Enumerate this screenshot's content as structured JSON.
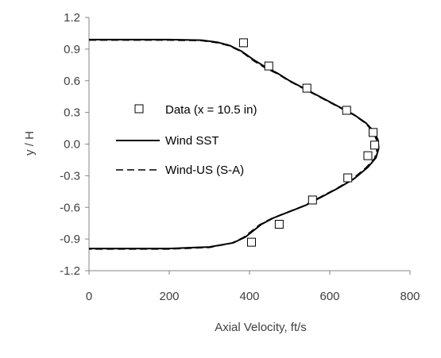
{
  "chart_data": {
    "type": "line",
    "xlabel": "Axial Velocity, ft/s",
    "ylabel": "y / H",
    "xlim": [
      0,
      800
    ],
    "ylim": [
      -1.2,
      1.2
    ],
    "x_ticks": [
      "0",
      "200",
      "400",
      "600",
      "800"
    ],
    "y_ticks": [
      "1.2",
      "0.9",
      "0.6",
      "0.3",
      "0.0",
      "-0.3",
      "-0.6",
      "-0.9",
      "-1.2"
    ],
    "grid": false,
    "legend_position": "center",
    "series": [
      {
        "name": "Data (x = 10.5 in)",
        "style": "markers-open-square",
        "color": "#000000",
        "x": [
          385,
          448,
          543,
          642,
          708,
          712,
          695,
          645,
          557,
          474,
          405
        ],
        "y": [
          0.96,
          0.74,
          0.53,
          0.32,
          0.11,
          -0.01,
          -0.11,
          -0.32,
          -0.53,
          -0.76,
          -0.93
        ]
      },
      {
        "name": "Wind SST",
        "style": "solid",
        "color": "#000000",
        "x": [
          0,
          100,
          200,
          280,
          320,
          350,
          380,
          410,
          440,
          470,
          500,
          540,
          580,
          620,
          660,
          690,
          710,
          720,
          722,
          715,
          695,
          660,
          620,
          580,
          540,
          500,
          460,
          430,
          410,
          390,
          360,
          300,
          200,
          100,
          0
        ],
        "y": [
          0.99,
          0.99,
          0.99,
          0.985,
          0.965,
          0.935,
          0.88,
          0.8,
          0.73,
          0.67,
          0.6,
          0.52,
          0.44,
          0.36,
          0.28,
          0.2,
          0.12,
          0.04,
          -0.04,
          -0.13,
          -0.22,
          -0.33,
          -0.42,
          -0.5,
          -0.58,
          -0.64,
          -0.7,
          -0.76,
          -0.82,
          -0.88,
          -0.935,
          -0.975,
          -0.99,
          -0.99,
          -0.99
        ]
      },
      {
        "name": "Wind-US (S-A)",
        "style": "dashed",
        "color": "#000000",
        "x": [
          0,
          100,
          200,
          280,
          320,
          350,
          380,
          410,
          440,
          470,
          500,
          540,
          580,
          620,
          660,
          690,
          708,
          717,
          718,
          712,
          690,
          655,
          615,
          575,
          535,
          495,
          455,
          425,
          405,
          385,
          355,
          300,
          200,
          100,
          0
        ],
        "y": [
          0.985,
          0.985,
          0.985,
          0.98,
          0.96,
          0.93,
          0.875,
          0.79,
          0.72,
          0.665,
          0.595,
          0.515,
          0.435,
          0.355,
          0.275,
          0.195,
          0.115,
          0.035,
          -0.045,
          -0.135,
          -0.225,
          -0.335,
          -0.425,
          -0.505,
          -0.585,
          -0.645,
          -0.705,
          -0.765,
          -0.825,
          -0.885,
          -0.94,
          -0.98,
          -0.995,
          -0.995,
          -0.995
        ]
      }
    ]
  }
}
